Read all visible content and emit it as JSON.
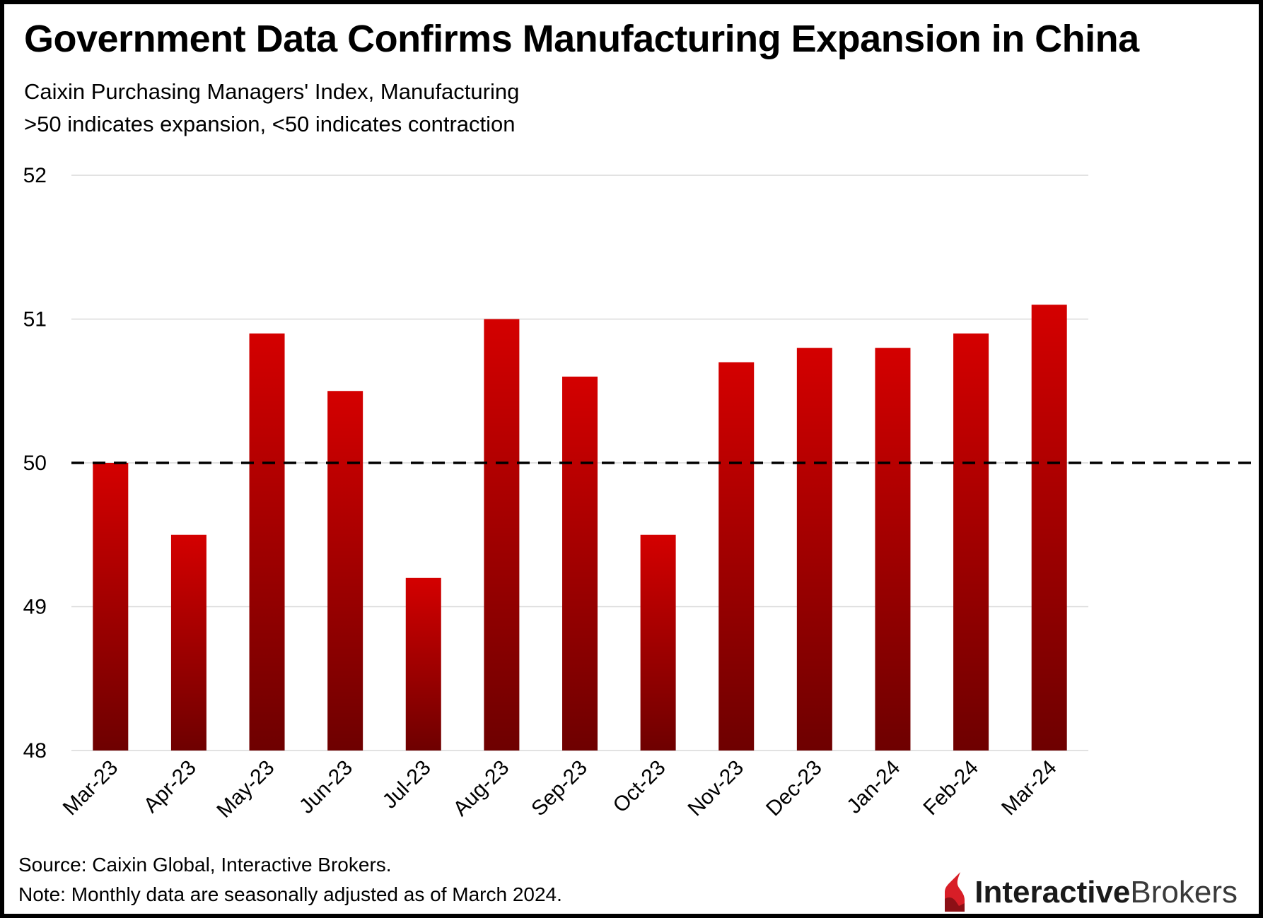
{
  "colors": {
    "bar_top": "#d40000",
    "bar_bottom": "#6e0000",
    "gridline": "#d9d9d9",
    "reference_line": "#000000",
    "brand_red": "#d81e27"
  },
  "chart_data": {
    "type": "bar",
    "title": "Government Data Confirms Manufacturing Expansion in China",
    "subtitle": [
      "Caixin Purchasing Managers' Index, Manufacturing",
      ">50 indicates expansion, <50 indicates contraction"
    ],
    "xlabel": "",
    "ylabel": "",
    "categories": [
      "Mar-23",
      "Apr-23",
      "May-23",
      "Jun-23",
      "Jul-23",
      "Aug-23",
      "Sep-23",
      "Oct-23",
      "Nov-23",
      "Dec-23",
      "Jan-24",
      "Feb-24",
      "Mar-24"
    ],
    "values": [
      50.0,
      49.5,
      50.9,
      50.5,
      49.2,
      51.0,
      50.6,
      49.5,
      50.7,
      50.8,
      50.8,
      50.9,
      51.1
    ],
    "ylim": [
      48,
      52
    ],
    "yticks": [
      "48",
      "49",
      "50",
      "51",
      "52"
    ],
    "reference_line": {
      "value": 50,
      "style": "dashed"
    },
    "grid": true,
    "legend": "none"
  },
  "footer": {
    "source": "Source: Caixin Global, Interactive Brokers.",
    "note": "Note: Monthly data are seasonally adjusted as of March 2024."
  },
  "logo": {
    "icon": "interactive-brokers-flame-icon",
    "bold": "Interactive",
    "light": "Brokers"
  }
}
